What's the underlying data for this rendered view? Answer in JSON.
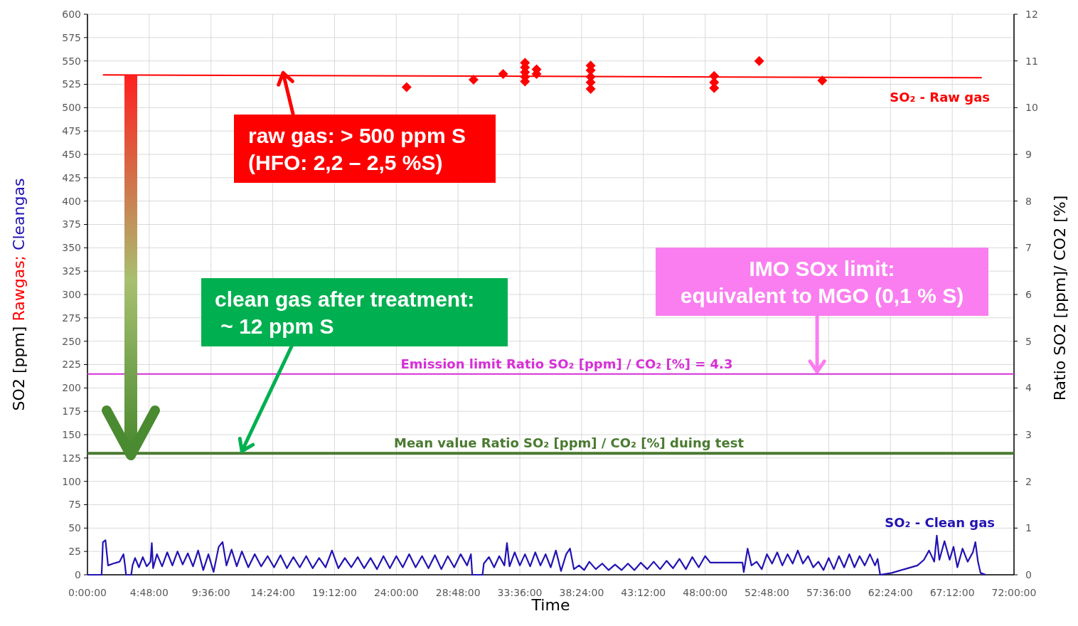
{
  "chart_data": {
    "type": "line",
    "xlabel": "Time",
    "ylabel": "SO2 [ppm] Rawgas; Cleangas",
    "y2label": "Ratio SO2 [ppm]/ CO2 [%]",
    "xlim": [
      0,
      72
    ],
    "xticks": [
      {
        "value": 0,
        "label": "0:00:00"
      },
      {
        "value": 4.8,
        "label": "4:48:00"
      },
      {
        "value": 9.6,
        "label": "9:36:00"
      },
      {
        "value": 14.4,
        "label": "14:24:00"
      },
      {
        "value": 19.2,
        "label": "19:12:00"
      },
      {
        "value": 24,
        "label": "24:00:00"
      },
      {
        "value": 28.8,
        "label": "28:48:00"
      },
      {
        "value": 33.6,
        "label": "33:36:00"
      },
      {
        "value": 38.4,
        "label": "38:24:00"
      },
      {
        "value": 43.2,
        "label": "43:12:00"
      },
      {
        "value": 48,
        "label": "48:00:00"
      },
      {
        "value": 52.8,
        "label": "52:48:00"
      },
      {
        "value": 57.6,
        "label": "57:36:00"
      },
      {
        "value": 62.4,
        "label": "62:24:00"
      },
      {
        "value": 67.2,
        "label": "67:12:00"
      },
      {
        "value": 72,
        "label": "72:00:00"
      }
    ],
    "ylim": [
      0,
      600
    ],
    "yticks": [
      0,
      25,
      50,
      75,
      100,
      125,
      150,
      175,
      200,
      225,
      250,
      275,
      300,
      325,
      350,
      375,
      400,
      425,
      450,
      475,
      500,
      525,
      550,
      575,
      600
    ],
    "y2lim": [
      0,
      12
    ],
    "y2ticks": [
      0,
      1,
      2,
      3,
      4,
      5,
      6,
      7,
      8,
      9,
      10,
      11,
      12
    ],
    "grid": true,
    "legend": false,
    "series": [
      {
        "color": "#ff0000",
        "x": [
          1.2,
          69.5
        ],
        "values": [
          535,
          532
        ]
      },
      {
        "type": "scatter",
        "name": "SO₂ - Raw gas",
        "color": "#ff0000",
        "marker": "diamond",
        "x": [
          24.8,
          30.0,
          32.3,
          34.0,
          34.0,
          34.0,
          34.0,
          34.0,
          34.9,
          34.9,
          39.1,
          39.1,
          39.1,
          39.1,
          39.1,
          48.7,
          48.7,
          48.7,
          52.2,
          57.1
        ],
        "values": [
          522,
          530,
          536,
          528,
          533,
          538,
          543,
          548,
          541,
          536,
          520,
          527,
          533,
          540,
          545,
          534,
          527,
          521,
          550,
          529
        ]
      },
      {
        "name": "SO₂ - Clean gas",
        "color": "#2213b3",
        "x": [
          0,
          1.1,
          1.2,
          1.4,
          1.6,
          2.0,
          2.5,
          2.8,
          2.9,
          3.0,
          3.4,
          3.5,
          3.7,
          4.0,
          4.3,
          4.6,
          4.9,
          5.0,
          5.1,
          5.4,
          5.8,
          6.2,
          6.6,
          7.0,
          7.4,
          7.8,
          8.2,
          8.6,
          9.0,
          9.4,
          9.8,
          10.2,
          10.5,
          10.8,
          11.2,
          11.6,
          12.0,
          12.5,
          13.0,
          13.5,
          14.0,
          14.5,
          15.0,
          15.5,
          16.0,
          16.5,
          17.0,
          17.5,
          18.0,
          18.5,
          19.0,
          19.5,
          20.0,
          20.5,
          21.0,
          21.5,
          22.0,
          22.5,
          23.0,
          23.5,
          24.0,
          24.5,
          25.0,
          25.5,
          26.0,
          26.5,
          27.0,
          27.5,
          28.0,
          28.5,
          29.0,
          29.5,
          29.8,
          29.9,
          30.7,
          30.8,
          31.2,
          31.6,
          32.0,
          32.4,
          32.6,
          32.8,
          33.2,
          33.6,
          34.0,
          34.4,
          34.8,
          35.2,
          35.6,
          36.0,
          36.4,
          36.8,
          37.2,
          37.5,
          37.8,
          38.2,
          38.6,
          39.0,
          39.5,
          40.0,
          40.5,
          41.0,
          41.5,
          42.0,
          42.5,
          43.0,
          43.5,
          44.0,
          44.5,
          45.0,
          45.5,
          46.0,
          46.5,
          47.0,
          47.5,
          48.0,
          48.4,
          50.9,
          51.0,
          51.3,
          51.6,
          52.0,
          52.4,
          52.8,
          53.2,
          53.6,
          54.0,
          54.4,
          54.8,
          55.2,
          55.6,
          56.0,
          56.4,
          56.8,
          57.2,
          57.6,
          58.0,
          58.4,
          58.8,
          59.2,
          59.6,
          60.0,
          60.4,
          60.8,
          61.2,
          61.4,
          61.6,
          62.5,
          63.5,
          64.5,
          65.0,
          65.4,
          65.8,
          66.0,
          66.2,
          66.6,
          67.0,
          67.3,
          67.6,
          68.0,
          68.4,
          68.8,
          69.0,
          69.2,
          69.4,
          69.8
        ],
        "values": [
          0,
          0,
          35,
          37,
          10,
          12,
          14,
          22,
          12,
          0,
          0,
          10,
          18,
          8,
          19,
          9,
          14,
          34,
          7,
          22,
          9,
          24,
          10,
          25,
          11,
          23,
          9,
          26,
          5,
          22,
          3,
          30,
          35,
          10,
          27,
          9,
          25,
          8,
          22,
          9,
          20,
          8,
          21,
          7,
          19,
          8,
          20,
          7,
          18,
          8,
          26,
          7,
          18,
          8,
          19,
          7,
          18,
          6,
          20,
          7,
          20,
          8,
          22,
          8,
          20,
          7,
          21,
          6,
          20,
          8,
          22,
          10,
          22,
          0,
          0,
          12,
          19,
          8,
          20,
          10,
          34,
          9,
          24,
          10,
          22,
          9,
          24,
          10,
          22,
          8,
          26,
          4,
          22,
          28,
          6,
          10,
          5,
          14,
          6,
          12,
          5,
          11,
          5,
          12,
          5,
          13,
          6,
          14,
          6,
          15,
          7,
          17,
          6,
          19,
          8,
          20,
          13,
          13,
          3,
          28,
          10,
          14,
          6,
          22,
          12,
          24,
          10,
          22,
          12,
          26,
          12,
          20,
          8,
          14,
          5,
          18,
          6,
          20,
          8,
          22,
          8,
          20,
          10,
          22,
          10,
          17,
          0,
          2,
          6,
          10,
          16,
          26,
          14,
          42,
          16,
          36,
          16,
          30,
          8,
          28,
          14,
          24,
          35,
          14,
          2,
          0
        ]
      }
    ],
    "ref_lines": [
      {
        "axis": "y2",
        "value": 4.3,
        "label": "Emission limit Ratio SO₂ [ppm] / CO₂ [%] = 4.3",
        "color": "#d72fd7"
      },
      {
        "axis": "y2",
        "value": 2.6,
        "label": "Mean value Ratio SO₂ [ppm] / CO₂ [%] duing test",
        "color": "#4a7a30"
      }
    ],
    "annotations": [
      {
        "text": "raw gas: > 500 ppm S\n(HFO: 2,2 – 2,5 %S)",
        "x": 15.2,
        "y": 535
      },
      {
        "text": "clean gas after treatment:\n ~ 12 ppm S",
        "x": 12.0,
        "y": 130
      },
      {
        "text": "IMO SOx limit:\nequivalent to MGO (0,1 % S)",
        "x": 56.7,
        "y": 215
      }
    ]
  }
}
